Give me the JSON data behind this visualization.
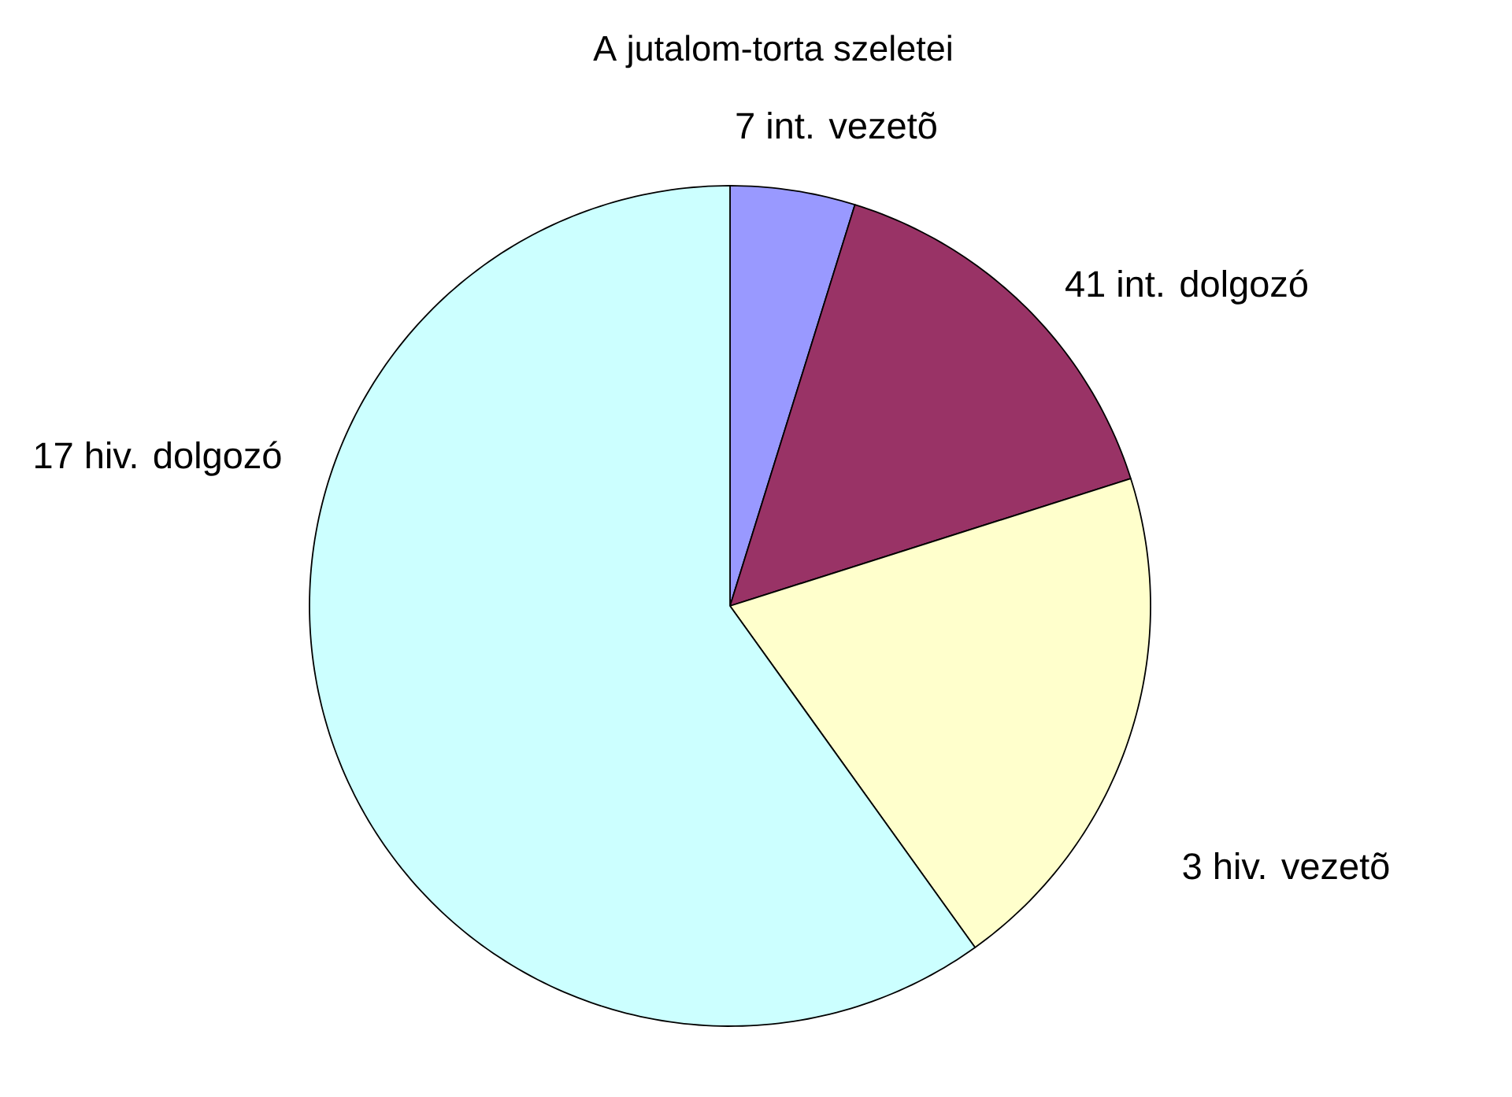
{
  "chart_data": {
    "type": "pie",
    "title": "A jutalom-torta szeletei",
    "categories": [
      "7 int. vezetõ",
      "41 int. dolgozó",
      "3 hiv. vezetõ",
      "17  hiv. dolgozó"
    ],
    "values": [
      4.8,
      15.3,
      20,
      59.9
    ],
    "colors": [
      "#9999ff",
      "#993366",
      "#ffffcc",
      "#ccffff"
    ]
  }
}
